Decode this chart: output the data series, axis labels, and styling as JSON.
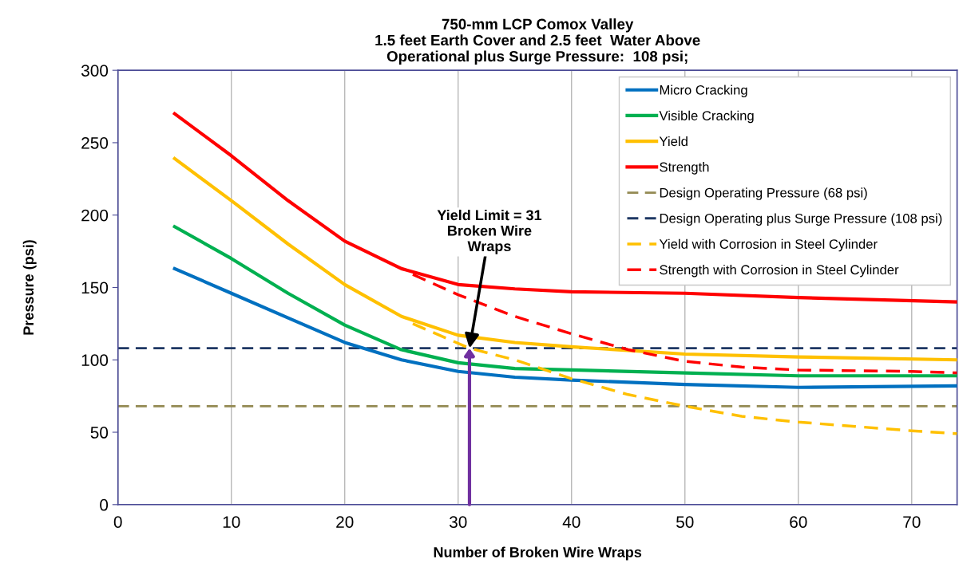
{
  "chart_data": {
    "type": "line",
    "title": "750-mm LCP Comox Valley\n1.5 feet Earth Cover and 2.5 feet  Water Above\nOperational plus Surge Pressure:  108 psi;",
    "xlabel": "Number of Broken Wire Wraps",
    "ylabel": "Pressure (psi)",
    "xlim": [
      0,
      74
    ],
    "xticks": [
      0,
      10,
      20,
      30,
      40,
      50,
      60,
      70
    ],
    "ylim": [
      0,
      300
    ],
    "yticks": [
      0,
      50,
      100,
      150,
      200,
      250,
      300
    ],
    "grid": "x",
    "legend": "top right",
    "series": [
      {
        "name": "Micro Cracking",
        "color": "#0070c0",
        "line_style": "solid",
        "x": [
          5,
          10,
          15,
          20,
          25,
          30,
          35,
          40,
          50,
          60,
          74
        ],
        "values": [
          163,
          146,
          129,
          112,
          100,
          92,
          88,
          86,
          83,
          81,
          82
        ]
      },
      {
        "name": "Visible Cracking",
        "color": "#00b050",
        "line_style": "solid",
        "x": [
          5,
          10,
          15,
          20,
          25,
          30,
          35,
          40,
          50,
          60,
          74
        ],
        "values": [
          192,
          170,
          146,
          124,
          107,
          98,
          94,
          93,
          91,
          89,
          89
        ]
      },
      {
        "name": "Yield",
        "color": "#ffc000",
        "line_style": "solid",
        "x": [
          5,
          10,
          15,
          20,
          25,
          30,
          35,
          40,
          50,
          60,
          74
        ],
        "values": [
          239,
          210,
          180,
          152,
          130,
          117,
          112,
          109,
          104,
          102,
          100
        ]
      },
      {
        "name": "Strength",
        "color": "#ff0000",
        "line_style": "solid",
        "x": [
          5,
          10,
          15,
          20,
          25,
          30,
          35,
          40,
          50,
          60,
          74
        ],
        "values": [
          270,
          241,
          210,
          182,
          163,
          152,
          149,
          147,
          146,
          143,
          140
        ]
      },
      {
        "name": "Yield with Corrosion in Steel Cylinder",
        "color": "#ffc000",
        "line_style": "dashed",
        "x": [
          26,
          31,
          35,
          40,
          45,
          50,
          55,
          60,
          65,
          70,
          74
        ],
        "values": [
          125,
          108,
          100,
          87,
          76,
          68,
          61,
          57,
          54,
          51,
          49
        ]
      },
      {
        "name": "Strength with Corrosion in Steel Cylinder",
        "color": "#ff0000",
        "line_style": "dashed",
        "x": [
          26,
          30,
          35,
          40,
          45,
          50,
          55,
          60,
          70,
          74
        ],
        "values": [
          159,
          145,
          130,
          118,
          107,
          99,
          95,
          93,
          92,
          91
        ]
      }
    ],
    "ref_lines": [
      {
        "axis": "y",
        "value": 68,
        "label": "Design Operating Pressure (68 psi)",
        "color": "#948a54",
        "line_style": "dashed"
      },
      {
        "axis": "y",
        "value": 108,
        "label": "Design Operating plus Surge Pressure (108 psi)",
        "color": "#1f3864",
        "line_style": "dashed"
      }
    ],
    "annotations": [
      {
        "text": "Yield Limit = 31\nBroken Wire\nWraps",
        "x": 31,
        "y": 108
      }
    ]
  }
}
